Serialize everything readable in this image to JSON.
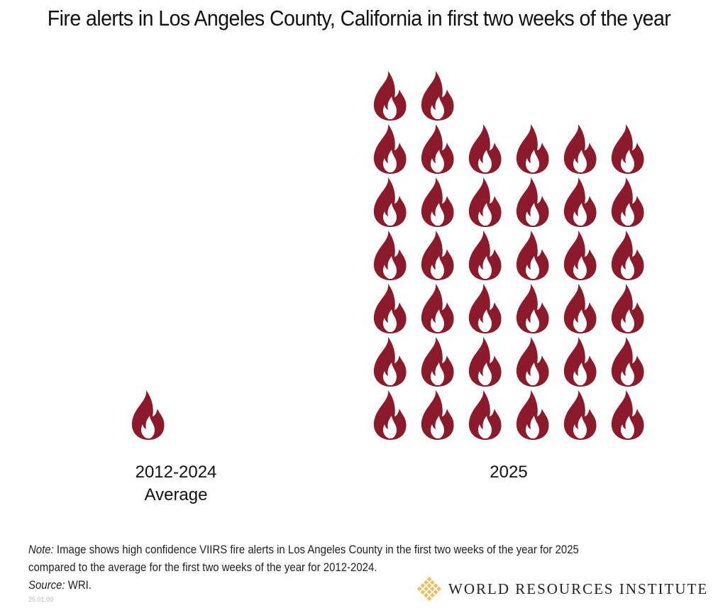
{
  "chart_data": {
    "type": "pictogram",
    "title": "Fire alerts in Los Angeles County, California in first two weeks of the year",
    "categories": [
      "2012-2024 Average",
      "2025"
    ],
    "category_lines": [
      [
        "2012-2024",
        "Average"
      ],
      [
        "2025"
      ]
    ],
    "values": [
      1.6,
      38
    ],
    "icon": "flame-icon",
    "icon_color": "#8b1a2b",
    "icons_per_row": [
      2,
      6
    ]
  },
  "note": {
    "label": "Note:",
    "text": " Image shows high confidence VIIRS fire alerts in Los Angeles County in the first two weeks of the year for 2025",
    "text2": "compared to the average for the first two weeks of the year for 2012-2024.",
    "source_label": "Source:",
    "source": " WRI."
  },
  "stamp": "25.01.09",
  "logo": {
    "text": "WORLD RESOURCES INSTITUTE",
    "color": "#e8b84a"
  }
}
